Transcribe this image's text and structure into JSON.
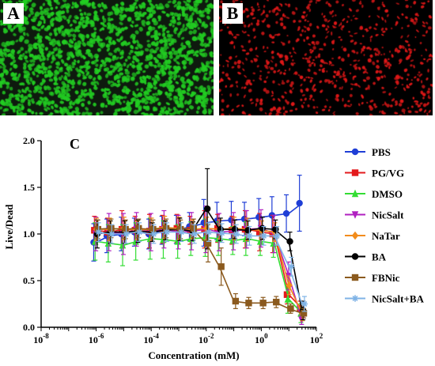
{
  "panels": [
    {
      "label": "A",
      "description_stain": "green",
      "color": "#22cc22",
      "background": "#0e1a0e"
    },
    {
      "label": "B",
      "description_stain": "red",
      "color": "#e01818",
      "background": "#000000"
    }
  ],
  "chart_data": {
    "type": "scatter",
    "panel_label": "C",
    "xlabel": "Concentration (mM)",
    "ylabel": "Live/Dead",
    "xscale": "log",
    "xlim": [
      1e-08,
      100
    ],
    "ylim": [
      0,
      2.0
    ],
    "x_ticks": [
      {
        "value": 1e-08,
        "base": "10",
        "exp": "-8"
      },
      {
        "value": 1e-06,
        "base": "10",
        "exp": "-6"
      },
      {
        "value": 0.0001,
        "base": "10",
        "exp": "-4"
      },
      {
        "value": 0.01,
        "base": "10",
        "exp": "-2"
      },
      {
        "value": 1,
        "base": "10",
        "exp": "0"
      },
      {
        "value": 100,
        "base": "10",
        "exp": "2"
      }
    ],
    "y_ticks": [
      "0.0",
      "0.5",
      "1.0",
      "1.5",
      "2.0"
    ],
    "legend_position": "right",
    "x": [
      1e-06,
      3e-06,
      1e-05,
      3e-05,
      0.0001,
      0.0003,
      0.001,
      0.003,
      0.01,
      0.03,
      0.1,
      0.3,
      1,
      3,
      10,
      30
    ],
    "series": [
      {
        "name": "PBS",
        "color": "#1f3ed6",
        "marker": "circle",
        "values": [
          0.91,
          0.98,
          1.0,
          1.02,
          1.0,
          1.04,
          1.05,
          1.08,
          1.12,
          1.14,
          1.15,
          1.16,
          1.18,
          1.2,
          1.22,
          1.33
        ],
        "errors": [
          0.2,
          0.18,
          0.18,
          0.15,
          0.16,
          0.15,
          0.15,
          0.15,
          0.25,
          0.2,
          0.2,
          0.18,
          0.2,
          0.2,
          0.2,
          0.3
        ]
      },
      {
        "name": "PG/VG",
        "color": "#e31a1c",
        "marker": "square",
        "values": [
          1.04,
          1.02,
          1.05,
          1.04,
          1.03,
          1.05,
          1.06,
          1.04,
          1.05,
          1.06,
          1.04,
          1.05,
          1.02,
          1.0,
          0.35,
          0.2
        ],
        "errors": [
          0.15,
          0.15,
          0.2,
          0.15,
          0.18,
          0.15,
          0.15,
          0.15,
          0.2,
          0.15,
          0.15,
          0.2,
          0.2,
          0.2,
          0.1,
          0.08
        ]
      },
      {
        "name": "DMSO",
        "color": "#33dd33",
        "marker": "triangle",
        "values": [
          0.92,
          0.9,
          0.88,
          0.92,
          0.95,
          0.94,
          0.92,
          0.95,
          0.96,
          0.95,
          0.93,
          0.95,
          0.92,
          0.9,
          0.3,
          0.15
        ],
        "errors": [
          0.2,
          0.2,
          0.22,
          0.2,
          0.22,
          0.2,
          0.18,
          0.18,
          0.2,
          0.18,
          0.15,
          0.18,
          0.15,
          0.15,
          0.15,
          0.1
        ]
      },
      {
        "name": "NicSalt",
        "color": "#b020c0",
        "marker": "triangle-down",
        "values": [
          1.0,
          1.02,
          1.0,
          1.05,
          1.02,
          1.05,
          1.02,
          1.03,
          1.05,
          1.02,
          1.03,
          1.05,
          1.06,
          1.0,
          0.55,
          0.08
        ],
        "errors": [
          0.18,
          0.2,
          0.22,
          0.18,
          0.2,
          0.2,
          0.18,
          0.2,
          0.25,
          0.2,
          0.2,
          0.2,
          0.2,
          0.2,
          0.15,
          0.05
        ]
      },
      {
        "name": "NaTar",
        "color": "#f28c1c",
        "marker": "diamond",
        "values": [
          1.05,
          1.05,
          1.06,
          1.04,
          1.05,
          1.07,
          1.06,
          1.05,
          1.06,
          1.05,
          1.06,
          1.05,
          1.04,
          1.02,
          0.45,
          0.15
        ],
        "errors": [
          0.12,
          0.12,
          0.12,
          0.1,
          0.12,
          0.12,
          0.12,
          0.1,
          0.12,
          0.1,
          0.12,
          0.12,
          0.1,
          0.1,
          0.1,
          0.08
        ]
      },
      {
        "name": "BA",
        "color": "#000000",
        "marker": "circle",
        "values": [
          1.0,
          1.02,
          1.02,
          1.03,
          1.02,
          1.04,
          1.05,
          1.03,
          1.27,
          1.05,
          1.05,
          1.04,
          1.06,
          1.05,
          0.92,
          0.18
        ],
        "errors": [
          0.15,
          0.12,
          0.12,
          0.12,
          0.1,
          0.1,
          0.12,
          0.1,
          0.43,
          0.12,
          0.1,
          0.1,
          0.12,
          0.1,
          0.1,
          0.1
        ]
      },
      {
        "name": "FBNic",
        "color": "#8b5a1e",
        "marker": "square",
        "values": [
          1.05,
          1.06,
          1.05,
          1.06,
          1.05,
          1.06,
          1.05,
          1.06,
          0.9,
          0.65,
          0.28,
          0.26,
          0.26,
          0.27,
          0.2,
          0.15
        ],
        "errors": [
          0.1,
          0.1,
          0.1,
          0.1,
          0.1,
          0.1,
          0.1,
          0.1,
          0.2,
          0.2,
          0.08,
          0.06,
          0.06,
          0.06,
          0.05,
          0.05
        ]
      },
      {
        "name": "NicSalt+BA",
        "color": "#7fb3e6",
        "marker": "star",
        "values": [
          1.02,
          1.0,
          1.0,
          1.02,
          1.0,
          1.02,
          1.02,
          1.0,
          1.02,
          1.01,
          1.0,
          0.98,
          0.98,
          0.98,
          0.65,
          0.25
        ],
        "errors": [
          0.1,
          0.1,
          0.1,
          0.1,
          0.1,
          0.1,
          0.1,
          0.1,
          0.1,
          0.1,
          0.1,
          0.1,
          0.1,
          0.1,
          0.1,
          0.08
        ]
      }
    ]
  }
}
